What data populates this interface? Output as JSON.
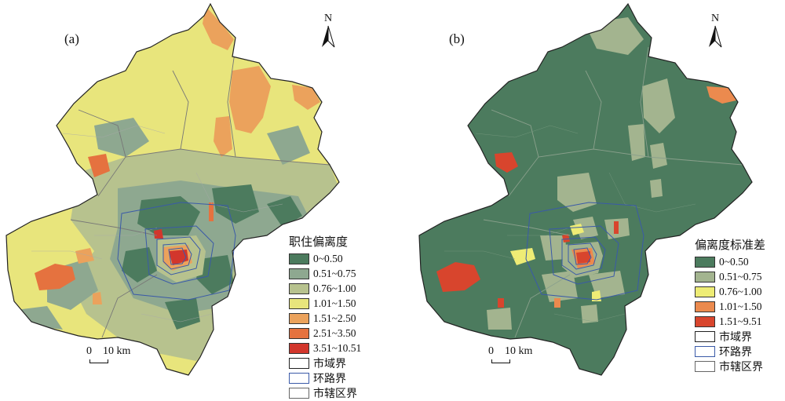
{
  "panel_a": {
    "letter": "(a)",
    "north_label": "N",
    "legend_title": "职住偏离度",
    "classes": [
      {
        "label": "0~0.50",
        "color": "#4c7b5e"
      },
      {
        "label": "0.51~0.75",
        "color": "#8ea890"
      },
      {
        "label": "0.76~1.00",
        "color": "#b7c28e"
      },
      {
        "label": "1.01~1.50",
        "color": "#e8e57c"
      },
      {
        "label": "1.51~2.50",
        "color": "#eba25c"
      },
      {
        "label": "2.51~3.50",
        "color": "#e5723f"
      },
      {
        "label": "3.51~10.51",
        "color": "#d2362c"
      }
    ],
    "boundaries": [
      {
        "label": "市域界",
        "color": "#222222"
      },
      {
        "label": "环路界",
        "color": "#3a5aa8"
      },
      {
        "label": "市辖区界",
        "color": "#666666"
      }
    ],
    "scale_zero": "0",
    "scale_distance": "10 km"
  },
  "panel_b": {
    "letter": "(b)",
    "north_label": "N",
    "legend_title": "偏离度标准差",
    "classes": [
      {
        "label": "0~0.50",
        "color": "#4c7b5e"
      },
      {
        "label": "0.51~0.75",
        "color": "#a3b48f"
      },
      {
        "label": "0.76~1.00",
        "color": "#eeec75"
      },
      {
        "label": "1.01~1.50",
        "color": "#eb8a4e"
      },
      {
        "label": "1.51~9.51",
        "color": "#d8452d"
      }
    ],
    "boundaries": [
      {
        "label": "市域界",
        "color": "#222222"
      },
      {
        "label": "环路界",
        "color": "#3a5aa8"
      },
      {
        "label": "市辖区界",
        "color": "#666666"
      }
    ],
    "scale_zero": "0",
    "scale_distance": "10 km"
  }
}
